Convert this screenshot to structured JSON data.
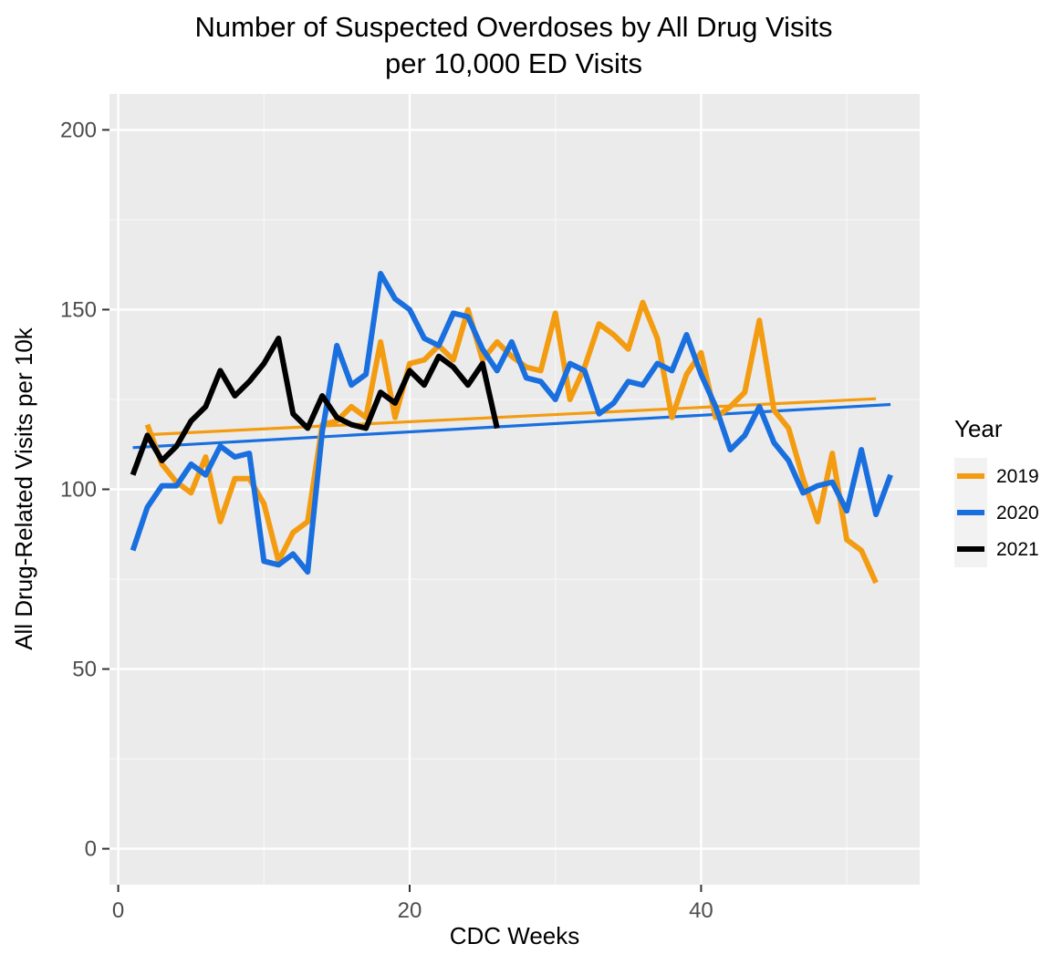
{
  "chart_data": {
    "type": "line",
    "title": "Number of Suspected Overdoses by All Drug Visits",
    "subtitle": "per 10,000 ED Visits",
    "xlabel": "CDC Weeks",
    "ylabel": "All Drug-Related Visits per 10k",
    "xlim": [
      -0.6,
      55.0
    ],
    "ylim": [
      -10,
      210
    ],
    "xticks": [
      0,
      20,
      40
    ],
    "yticks": [
      0,
      50,
      100,
      150,
      200
    ],
    "x_minor_ticks": [
      10,
      30,
      50
    ],
    "y_minor_ticks": [
      25,
      75,
      125,
      175
    ],
    "grid": true,
    "legend": {
      "title": "Year",
      "position": "right"
    },
    "series": [
      {
        "name": "2019",
        "color": "#f39c12",
        "x": [
          2,
          3,
          4,
          5,
          6,
          7,
          8,
          9,
          10,
          11,
          12,
          13,
          14,
          15,
          16,
          17,
          18,
          19,
          20,
          21,
          22,
          23,
          24,
          25,
          26,
          27,
          28,
          29,
          30,
          31,
          32,
          33,
          34,
          35,
          36,
          37,
          38,
          39,
          40,
          41,
          42,
          43,
          44,
          45,
          46,
          47,
          48,
          49,
          50,
          51,
          52
        ],
        "values": [
          118,
          107,
          102,
          99,
          109,
          91,
          103,
          103,
          96,
          80,
          88,
          91,
          118,
          119,
          123,
          120,
          141,
          120,
          135,
          136,
          140,
          136,
          150,
          136,
          141,
          137,
          134,
          133,
          149,
          125,
          134,
          146,
          143,
          139,
          152,
          142,
          120,
          132,
          138,
          120,
          123,
          127,
          147,
          122,
          117,
          103,
          91,
          110,
          86,
          83,
          74
        ],
        "trend": {
          "x": [
            2,
            52
          ],
          "values": [
            115.2,
            125.2
          ]
        }
      },
      {
        "name": "2020",
        "color": "#1a6fdf",
        "x": [
          1,
          2,
          3,
          4,
          5,
          6,
          7,
          8,
          9,
          10,
          11,
          12,
          13,
          14,
          15,
          16,
          17,
          18,
          19,
          20,
          21,
          22,
          23,
          24,
          25,
          26,
          27,
          28,
          29,
          30,
          31,
          32,
          33,
          34,
          35,
          36,
          37,
          38,
          39,
          40,
          41,
          42,
          43,
          44,
          45,
          46,
          47,
          48,
          49,
          50,
          51,
          52,
          53
        ],
        "values": [
          83,
          95,
          101,
          101,
          107,
          104,
          112,
          109,
          110,
          80,
          79,
          82,
          77,
          116,
          140,
          129,
          132,
          160,
          153,
          150,
          142,
          140,
          149,
          148,
          139,
          133,
          141,
          131,
          130,
          125,
          135,
          133,
          121,
          124,
          130,
          129,
          135,
          133,
          143,
          132,
          123,
          111,
          115,
          123,
          113,
          108,
          99,
          101,
          102,
          94,
          111,
          93,
          104
        ],
        "trend": {
          "x": [
            1,
            53
          ],
          "values": [
            111.6,
            123.6
          ]
        }
      },
      {
        "name": "2021",
        "color": "#000000",
        "x": [
          1,
          2,
          3,
          4,
          5,
          6,
          7,
          8,
          9,
          10,
          11,
          12,
          13,
          14,
          15,
          16,
          17,
          18,
          19,
          20,
          21,
          22,
          23,
          24,
          25,
          26
        ],
        "values": [
          104,
          115,
          108,
          112,
          119,
          123,
          133,
          126,
          130,
          135,
          142,
          121,
          117,
          126,
          120,
          118,
          117,
          127,
          124,
          133,
          129,
          137,
          134,
          129,
          135,
          117
        ]
      }
    ]
  }
}
